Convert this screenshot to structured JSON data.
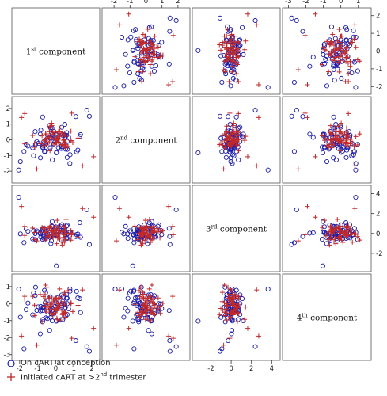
{
  "chart_data": {
    "type": "scatter",
    "variables": [
      {
        "ordinal": "1",
        "suffix": "st",
        "label": "component",
        "range": [
          -2.3,
          2.3
        ],
        "ticks": [
          -2,
          -1,
          0,
          1,
          2
        ]
      },
      {
        "ordinal": "2",
        "suffix": "nd",
        "label": "component",
        "range": [
          -2.6,
          2.6
        ],
        "ticks": [
          -2,
          -1,
          0,
          1,
          2
        ]
      },
      {
        "ordinal": "3",
        "suffix": "rd",
        "label": "component",
        "range": [
          -3.6,
          4.6
        ],
        "ticks": [
          -2,
          0,
          2,
          4
        ]
      },
      {
        "ordinal": "4",
        "suffix": "th",
        "label": "component",
        "range": [
          -3.2,
          1.6
        ],
        "ticks": [
          -3,
          -2,
          -1,
          0,
          1
        ]
      }
    ],
    "legend": [
      {
        "marker": "circle",
        "color": "#1a1aa8",
        "label": "On cART at conception"
      },
      {
        "marker": "plus",
        "color": "#c0282a",
        "label": "Initiated cART at >2",
        "label_sup": "nd",
        "label_end": " trimester"
      }
    ],
    "legend_placement": "bottom-left",
    "series": [
      {
        "name": "On cART at conception",
        "points": [
          [
            0.32,
            -0.35,
            -0.68,
            -0.21
          ],
          [
            -1.14,
            0.52,
            -0.01,
            0.47
          ],
          [
            -0.11,
            -0.26,
            0.35,
            -0.45
          ],
          [
            -1.23,
            -1.02,
            0.27,
            0.62
          ],
          [
            -0.85,
            -1.15,
            -0.04,
            -0.43
          ],
          [
            -1.64,
            -0.28,
            0.48,
            -0.36
          ],
          [
            0.02,
            0.3,
            0.12,
            -1.02
          ],
          [
            0.63,
            -0.11,
            0.86,
            -0.64
          ],
          [
            1.33,
            0.21,
            1.09,
            0.29
          ],
          [
            0.63,
            -1.13,
            -0.49,
            0.31
          ],
          [
            -0.73,
            -0.46,
            -0.58,
            -1.07
          ],
          [
            -1.12,
            -0.29,
            -0.61,
            0.96
          ],
          [
            -0.2,
            0.36,
            1.2,
            -1.01
          ],
          [
            0.07,
            -0.8,
            -0.12,
            0.02
          ],
          [
            -1.28,
            -0.51,
            -0.54,
            -0.66
          ],
          [
            0.38,
            0.35,
            0.1,
            -0.95
          ],
          [
            -0.1,
            0.53,
            -0.06,
            -0.6
          ],
          [
            -0.63,
            -0.75,
            0.52,
            0.78
          ],
          [
            -0.67,
            -0.24,
            -0.31,
            -0.22
          ],
          [
            -0.19,
            -1.28,
            0.71,
            -0.26
          ],
          [
            0.64,
            -0.61,
            -0.05,
            0.0
          ],
          [
            0.3,
            -0.56,
            0.34,
            -0.13
          ],
          [
            0.51,
            0.31,
            0.54,
            -0.01
          ],
          [
            1.37,
            0.33,
            -0.38,
            -0.53
          ],
          [
            -0.59,
            -0.33,
            0.22,
            0.04
          ],
          [
            -0.35,
            0.92,
            0.31,
            -0.01
          ],
          [
            0.3,
            -0.45,
            0.68,
            -0.94
          ],
          [
            -0.24,
            0.12,
            -0.73,
            -0.62
          ],
          [
            -0.83,
            0.62,
            -0.36,
            -0.17
          ],
          [
            0.01,
            0.06,
            -0.18,
            0.08
          ],
          [
            0.6,
            0.46,
            0.75,
            0.32
          ],
          [
            0.33,
            0.17,
            0.88,
            0.51
          ],
          [
            -0.31,
            -0.51,
            -0.4,
            0.4
          ],
          [
            -0.05,
            -0.11,
            0.5,
            -0.17
          ],
          [
            -0.21,
            0.75,
            0.72,
            -0.42
          ],
          [
            -0.71,
            -0.51,
            0.12,
            -0.93
          ],
          [
            -0.13,
            -0.27,
            -0.27,
            -0.08
          ],
          [
            -0.86,
            0.36,
            0.03,
            -1.78
          ],
          [
            0.5,
            0.98,
            -0.11,
            -0.29
          ],
          [
            0.78,
            -1.51,
            0.11,
            0.86
          ],
          [
            -0.34,
            0.15,
            0.07,
            -1.58
          ],
          [
            0.54,
            -0.6,
            0.03,
            -0.68
          ],
          [
            -0.56,
            -0.23,
            -0.17,
            0.64
          ],
          [
            -1.05,
            -0.12,
            0.26,
            -0.4
          ],
          [
            0.33,
            0.8,
            0.87,
            0.0
          ],
          [
            0.39,
            -0.46,
            0.32,
            0.13
          ],
          [
            -0.97,
            -0.23,
            0.12,
            -0.19
          ],
          [
            -0.54,
            -0.25,
            -0.39,
            -0.84
          ],
          [
            -0.27,
            0.09,
            -1.01,
            -0.81
          ],
          [
            0.41,
            0.25,
            0.58,
            0.4
          ],
          [
            -0.57,
            -0.73,
            -0.54,
            0.1
          ],
          [
            0.79,
            -0.95,
            0.14,
            0.73
          ],
          [
            0.71,
            0.17,
            0.13,
            -0.31
          ],
          [
            -0.73,
            1.45,
            0.51,
            -0.41
          ],
          [
            0.14,
            -0.5,
            0.24,
            0.36
          ],
          [
            0.53,
            0.17,
            -0.32,
            -0.23
          ],
          [
            1.22,
            -0.66,
            -0.05,
            0.34
          ],
          [
            0.0,
            0.37,
            0.67,
            -0.38
          ],
          [
            0.6,
            0.29,
            -0.44,
            0.53
          ],
          [
            -0.29,
            0.76,
            -0.27,
            -0.33
          ],
          [
            1.15,
            -0.77,
            -0.11,
            0.72
          ],
          [
            -0.46,
            -0.01,
            -0.19,
            -0.49
          ],
          [
            -0.71,
            -0.36,
            0.33,
            -0.22
          ],
          [
            -1.54,
            -0.4,
            0.21,
            0.03
          ],
          [
            -0.46,
            0.1,
            -0.04,
            -0.88
          ],
          [
            -0.67,
            -0.12,
            -0.48,
            -0.21
          ],
          [
            1.86,
            1.5,
            -1.1,
            -2.81
          ],
          [
            -2.05,
            -1.93,
            3.64,
            0.85
          ],
          [
            0.03,
            -0.83,
            -3.26,
            -1.03
          ],
          [
            1.11,
            1.48,
            -0.31,
            -2.18
          ],
          [
            -1.96,
            -1.39,
            -0.04,
            -0.8
          ],
          [
            1.72,
            1.89,
            2.38,
            -2.53
          ],
          [
            -1.76,
            -0.75,
            -0.92,
            -2.66
          ]
        ]
      },
      {
        "name": "Initiated cART at >2nd trimester",
        "points": [
          [
            -0.49,
            -0.33,
            -0.32,
            0.96
          ],
          [
            0.02,
            -0.18,
            0.27,
            0.34
          ],
          [
            -0.16,
            0.44,
            -0.43,
            0.02
          ],
          [
            -1.16,
            -0.48,
            -0.6,
            -0.7
          ],
          [
            0.05,
            -0.21,
            -1.02,
            -0.29
          ],
          [
            0.47,
            0.34,
            -0.06,
            -0.55
          ],
          [
            0.42,
            -0.03,
            -0.41,
            -0.58
          ],
          [
            0.47,
            -0.18,
            -0.14,
            0.55
          ],
          [
            0.52,
            -0.51,
            -0.62,
            -0.51
          ],
          [
            0.21,
            0.21,
            -0.1,
            0.86
          ],
          [
            0.08,
            -0.03,
            1.33,
            -0.93
          ],
          [
            0.49,
            -0.21,
            -0.87,
            0.66
          ],
          [
            0.84,
            -0.07,
            -0.67,
            0.05
          ],
          [
            -0.14,
            0.36,
            0.13,
            0.21
          ],
          [
            0.15,
            -0.15,
            -0.08,
            0.3
          ],
          [
            0.57,
            0.22,
            1.42,
            -0.2
          ],
          [
            -0.02,
            -0.19,
            0.45,
            -0.54
          ],
          [
            0.38,
            0.44,
            0.19,
            -0.58
          ],
          [
            -0.64,
            -0.04,
            0.58,
            -0.14
          ],
          [
            0.15,
            0.52,
            -0.45,
            -0.02
          ],
          [
            -0.86,
            -0.25,
            0.13,
            0.54
          ],
          [
            -0.36,
            0.76,
            0.48,
            -0.35
          ],
          [
            1.23,
            0.11,
            -0.36,
            -0.1
          ],
          [
            0.36,
            -0.3,
            -1.16,
            -0.65
          ],
          [
            0.33,
            0.42,
            0.22,
            0.02
          ],
          [
            0.68,
            -0.42,
            0.02,
            0.76
          ],
          [
            -1.72,
            -0.26,
            -0.2,
            0.27
          ],
          [
            -0.5,
            0.38,
            0.15,
            -0.5
          ],
          [
            -0.54,
            0.11,
            -0.46,
            -0.35
          ],
          [
            0.02,
            0.03,
            0.27,
            -0.42
          ],
          [
            -0.59,
            -0.03,
            0.07,
            0.29
          ],
          [
            0.53,
            -0.31,
            0.61,
            -0.54
          ],
          [
            -1.18,
            -0.21,
            0.1,
            -0.09
          ],
          [
            -0.32,
            -0.7,
            0.75,
            -0.04
          ],
          [
            -0.59,
            -0.01,
            0.36,
            0.53
          ],
          [
            -1.28,
            0.28,
            0.54,
            0.43
          ],
          [
            -0.21,
            0.9,
            0.22,
            -0.58
          ],
          [
            -0.23,
            1.06,
            0.25,
            0.02
          ],
          [
            0.1,
            0.3,
            -0.48,
            -0.32
          ],
          [
            -0.17,
            0.55,
            0.17,
            -0.66
          ],
          [
            0.23,
            0.29,
            -0.46,
            -0.97
          ],
          [
            0.46,
            0.01,
            0.76,
            -0.59
          ],
          [
            -0.02,
            0.48,
            0.72,
            0.3
          ],
          [
            0.05,
            0.07,
            -0.01,
            0.11
          ],
          [
            -0.36,
            -0.13,
            0.6,
            0.3
          ],
          [
            -0.68,
            -0.37,
            0.54,
            0.42
          ],
          [
            -0.54,
            -0.14,
            0.11,
            -0.02
          ],
          [
            -0.34,
            0.18,
            -0.2,
            0.39
          ],
          [
            0.49,
            -0.14,
            0.32,
            -0.08
          ],
          [
            -0.57,
            0.37,
            -0.66,
            1.09
          ],
          [
            0.94,
            -0.18,
            0.04,
            -0.47
          ],
          [
            -0.76,
            0.26,
            0.61,
            -1.07
          ],
          [
            0.84,
            0.55,
            0.29,
            -0.01
          ],
          [
            -0.32,
            0.87,
            -0.45,
            -0.14
          ],
          [
            -0.25,
            0.04,
            0.63,
            -0.59
          ],
          [
            0.1,
            -0.09,
            0.47,
            -0.12
          ],
          [
            0.33,
            -0.34,
            -0.84,
            -0.39
          ],
          [
            -0.1,
            0.08,
            0.36,
            -0.33
          ],
          [
            -0.35,
            0.51,
            0.49,
            -0.26
          ],
          [
            0.06,
            0.09,
            -0.24,
            -0.85
          ],
          [
            0.2,
            0.51,
            -0.44,
            -0.11
          ],
          [
            0.85,
            -0.05,
            -0.46,
            0.04
          ],
          [
            -0.38,
            0.13,
            -0.24,
            0.31
          ],
          [
            0.23,
            0.76,
            0.15,
            0.33
          ],
          [
            0.13,
            0.02,
            0.67,
            -0.24
          ],
          [
            0.4,
            0.28,
            -0.89,
            0.12
          ],
          [
            -0.11,
            -0.27,
            -0.15,
            0.27
          ],
          [
            0.54,
            -0.37,
            -0.06,
            -0.8
          ],
          [
            1.48,
            -1.66,
            2.51,
            0.8
          ],
          [
            -1.05,
            -1.86,
            -0.74,
            -2.44
          ],
          [
            2.09,
            -1.08,
            1.63,
            -1.46
          ],
          [
            -1.72,
            1.67,
            0.72,
            0.43
          ],
          [
            -1.9,
            1.42,
            2.72,
            -1.91
          ],
          [
            0.88,
            1.7,
            -0.13,
            -2.04
          ]
        ]
      }
    ]
  }
}
